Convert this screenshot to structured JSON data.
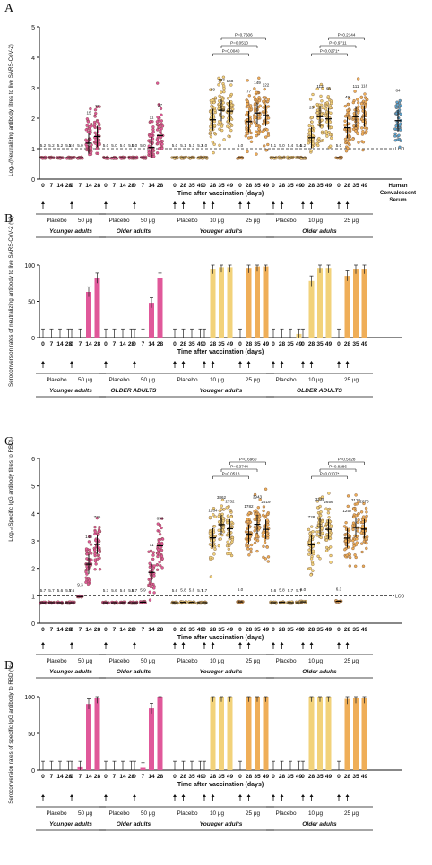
{
  "figure": {
    "panel_letters": [
      "A",
      "B",
      "C",
      "D"
    ]
  },
  "chart_data": [
    {
      "panel": "A",
      "type": "scatter",
      "ylabel": "Log₁₀(Neutralizing antibody titres to live SARS-CoV-2)",
      "xlabel": "Time after vaccination (days)",
      "ylim": [
        0,
        5
      ],
      "yticks": [
        0,
        1,
        2,
        3,
        4,
        5
      ],
      "lod_value": 1.0,
      "lod_label": "LOD",
      "groups": [
        {
          "days": [
            "0",
            "7",
            "14",
            "28"
          ],
          "gmt_labels": [
            "5.2",
            "5.2",
            "5.2",
            "5.2"
          ],
          "color": "#e0589a",
          "centers": [
            0.7,
            0.7,
            0.7,
            0.7
          ]
        },
        {
          "days": [
            "0",
            "7",
            "14",
            "28"
          ],
          "gmt_labels": [
            "5.0",
            "5.0",
            "15",
            "25"
          ],
          "color": "#e0589a",
          "centers": [
            0.7,
            0.7,
            1.18,
            1.4
          ]
        },
        {
          "days": [
            "0",
            "7",
            "14",
            "28"
          ],
          "gmt_labels": [
            "5.0",
            "5.0",
            "5.0",
            "5.0"
          ],
          "color": "#e0589a",
          "centers": [
            0.7,
            0.7,
            0.7,
            0.7
          ]
        },
        {
          "days": [
            "0",
            "7",
            "14",
            "28"
          ],
          "gmt_labels": [
            "5.0",
            "5.0",
            "11",
            "27"
          ],
          "color": "#e0589a",
          "centers": [
            0.7,
            0.7,
            1.04,
            1.43
          ]
        },
        {
          "days": [
            "0",
            "28",
            "35",
            "49"
          ],
          "gmt_labels": [
            "5.0",
            "5.1",
            "5.1",
            "5.2"
          ],
          "color": "#f2d27a",
          "centers": [
            0.7,
            0.7,
            0.7,
            0.7
          ]
        },
        {
          "days": [
            "0",
            "28",
            "35",
            "49"
          ],
          "gmt_labels": [
            "5.0",
            "89",
            "182",
            "168"
          ],
          "color": "#f2d27a",
          "centers": [
            0.7,
            1.95,
            2.26,
            2.23
          ]
        },
        {
          "days": [
            "0",
            "28",
            "35",
            "49"
          ],
          "gmt_labels": [
            "5.0",
            "77",
            "149",
            "122"
          ],
          "color": "#efae58",
          "centers": [
            0.7,
            1.89,
            2.17,
            2.09
          ]
        },
        {
          "days": [
            "0",
            "28",
            "35",
            "49"
          ],
          "gmt_labels": [
            "5.1",
            "5.0",
            "5.4",
            "5.4"
          ],
          "color": "#f2d27a",
          "centers": [
            0.7,
            0.7,
            0.7,
            0.7
          ]
        },
        {
          "days": [
            "0",
            "28",
            "35",
            "49"
          ],
          "gmt_labels": [
            "5.2",
            "23",
            "112",
            "96"
          ],
          "color": "#f2d27a",
          "centers": [
            0.7,
            1.36,
            2.05,
            1.98
          ]
        },
        {
          "days": [
            "0",
            "28",
            "35",
            "49"
          ],
          "gmt_labels": [
            "5.0",
            "49",
            "111",
            "118"
          ],
          "color": "#efae58",
          "centers": [
            0.7,
            1.69,
            2.05,
            2.07
          ]
        },
        {
          "days": [
            ""
          ],
          "gmt_labels": [
            "84"
          ],
          "color": "#5ba3cf",
          "centers": [
            1.92
          ]
        }
      ],
      "p_values": [
        {
          "text": "P=0.7606"
        },
        {
          "text": "P=0.0510"
        },
        {
          "text": "P=0.0040"
        },
        {
          "text": "P=0.2144"
        },
        {
          "text": "P=0.9711"
        },
        {
          "text": "P=0.0271*"
        }
      ],
      "extra_label": "Human Convalescent Serum"
    },
    {
      "panel": "B",
      "type": "bar",
      "ylabel": "Seroconversion rates of neutralizing antibody to live SARS-CoV-2 (%)",
      "xlabel": "Time after vaccination (days)",
      "ylim": [
        0,
        100
      ],
      "yticks": [
        0,
        50,
        100
      ],
      "groups": [
        {
          "days": [
            "0",
            "7",
            "14",
            "28"
          ],
          "values": [
            0,
            0,
            0,
            0
          ],
          "color": "#e0589a"
        },
        {
          "days": [
            "0",
            "7",
            "14",
            "28"
          ],
          "values": [
            0,
            0,
            63,
            82
          ],
          "color": "#e0589a"
        },
        {
          "days": [
            "0",
            "7",
            "14",
            "28"
          ],
          "values": [
            0,
            0,
            0,
            0
          ],
          "color": "#e0589a"
        },
        {
          "days": [
            "0",
            "7",
            "14",
            "28"
          ],
          "values": [
            0,
            0,
            48,
            82
          ],
          "color": "#e0589a"
        },
        {
          "days": [
            "0",
            "28",
            "35",
            "49"
          ],
          "values": [
            0,
            0,
            0,
            0
          ],
          "color": "#f2d27a"
        },
        {
          "days": [
            "0",
            "28",
            "35",
            "49"
          ],
          "values": [
            0,
            95,
            97,
            97
          ],
          "color": "#f2d27a"
        },
        {
          "days": [
            "0",
            "28",
            "35",
            "49"
          ],
          "values": [
            0,
            96,
            98,
            98
          ],
          "color": "#efae58"
        },
        {
          "days": [
            "0",
            "28",
            "35",
            "49"
          ],
          "values": [
            0,
            0,
            0,
            5
          ],
          "color": "#f2d27a"
        },
        {
          "days": [
            "0",
            "28",
            "35",
            "49"
          ],
          "values": [
            0,
            78,
            96,
            96
          ],
          "color": "#f2d27a"
        },
        {
          "days": [
            "0",
            "28",
            "35",
            "49"
          ],
          "values": [
            0,
            85,
            95,
            95
          ],
          "color": "#efae58"
        }
      ]
    },
    {
      "panel": "C",
      "type": "scatter",
      "ylabel": "Log₁₀(Specific IgG antibody titres to RBD)",
      "xlabel": "Time after vaccination (days)",
      "ylim": [
        0,
        6
      ],
      "yticks": [
        0,
        1,
        2,
        3,
        4,
        5,
        6
      ],
      "lod_value": 1.0,
      "lod_label": "LOD",
      "groups": [
        {
          "days": [
            "0",
            "7",
            "14",
            "28"
          ],
          "gmt_labels": [
            "5.7",
            "5.7",
            "5.6",
            "5.7"
          ],
          "color": "#e0589a",
          "centers": [
            0.75,
            0.75,
            0.75,
            0.75
          ]
        },
        {
          "days": [
            "0",
            "7",
            "14",
            "28"
          ],
          "gmt_labels": [
            "5.6",
            "9.3",
            "140",
            "735"
          ],
          "color": "#e0589a",
          "centers": [
            0.75,
            0.97,
            2.15,
            2.87
          ]
        },
        {
          "days": [
            "0",
            "7",
            "14",
            "28"
          ],
          "gmt_labels": [
            "5.7",
            "5.6",
            "5.6",
            "5.6"
          ],
          "color": "#e0589a",
          "centers": [
            0.75,
            0.75,
            0.75,
            0.75
          ]
        },
        {
          "days": [
            "0",
            "7",
            "14",
            "28"
          ],
          "gmt_labels": [
            "5.7",
            "5.9",
            "71",
            "654"
          ],
          "color": "#e0589a",
          "centers": [
            0.75,
            0.77,
            1.85,
            2.82
          ]
        },
        {
          "days": [
            "0",
            "28",
            "35",
            "49"
          ],
          "gmt_labels": [
            "5.6",
            "5.8",
            "5.8",
            "5.7"
          ],
          "color": "#f2d27a",
          "centers": [
            0.75,
            0.76,
            0.76,
            0.75
          ]
        },
        {
          "days": [
            "0",
            "28",
            "35",
            "49"
          ],
          "gmt_labels": [
            "5.7",
            "1284",
            "3862",
            "2732"
          ],
          "color": "#f2d27a",
          "centers": [
            0.75,
            3.11,
            3.59,
            3.44
          ]
        },
        {
          "days": [
            "0",
            "28",
            "35",
            "49"
          ],
          "gmt_labels": [
            "6.0",
            "1782",
            "3943",
            "2619"
          ],
          "color": "#efae58",
          "centers": [
            0.78,
            3.25,
            3.6,
            3.42
          ]
        },
        {
          "days": [
            "0",
            "28",
            "35",
            "49"
          ],
          "gmt_labels": [
            "5.6",
            "5.8",
            "5.7",
            "5.7"
          ],
          "color": "#f2d27a",
          "centers": [
            0.75,
            0.76,
            0.75,
            0.75
          ]
        },
        {
          "days": [
            "0",
            "28",
            "35",
            "49"
          ],
          "gmt_labels": [
            "6.0",
            "728",
            "3239",
            "2656"
          ],
          "color": "#f2d27a",
          "centers": [
            0.78,
            2.86,
            3.51,
            3.42
          ]
        },
        {
          "days": [
            "0",
            "28",
            "35",
            "49"
          ],
          "gmt_labels": [
            "6.3",
            "1257",
            "3120",
            "2675"
          ],
          "color": "#efae58",
          "centers": [
            0.8,
            3.1,
            3.49,
            3.43
          ]
        }
      ],
      "p_values": [
        {
          "text": "P=0.6960"
        },
        {
          "text": "P=0.3744"
        },
        {
          "text": "P=0.0518"
        },
        {
          "text": "P=0.5028"
        },
        {
          "text": "P=0.8286"
        },
        {
          "text": "P=0.0107*"
        }
      ]
    },
    {
      "panel": "D",
      "type": "bar",
      "ylabel": "Seroconversion rates of specific IgG antibody to RBD (%)",
      "xlabel": "Time after vaccination (days)",
      "ylim": [
        0,
        100
      ],
      "yticks": [
        0,
        50,
        100
      ],
      "groups": [
        {
          "days": [
            "0",
            "7",
            "14",
            "28"
          ],
          "values": [
            0,
            0,
            0,
            0
          ],
          "color": "#e0589a"
        },
        {
          "days": [
            "0",
            "7",
            "14",
            "28"
          ],
          "values": [
            0,
            5,
            90,
            98
          ],
          "color": "#e0589a"
        },
        {
          "days": [
            "0",
            "7",
            "14",
            "28"
          ],
          "values": [
            0,
            0,
            0,
            0
          ],
          "color": "#e0589a"
        },
        {
          "days": [
            "0",
            "7",
            "14",
            "28"
          ],
          "values": [
            0,
            3,
            84,
            100
          ],
          "color": "#e0589a"
        },
        {
          "days": [
            "0",
            "28",
            "35",
            "49"
          ],
          "values": [
            0,
            0,
            0,
            0
          ],
          "color": "#f2d27a"
        },
        {
          "days": [
            "0",
            "28",
            "35",
            "49"
          ],
          "values": [
            0,
            100,
            100,
            100
          ],
          "color": "#f2d27a"
        },
        {
          "days": [
            "0",
            "28",
            "35",
            "49"
          ],
          "values": [
            0,
            100,
            100,
            100
          ],
          "color": "#efae58"
        },
        {
          "days": [
            "0",
            "28",
            "35",
            "49"
          ],
          "values": [
            0,
            0,
            0,
            0
          ],
          "color": "#f2d27a"
        },
        {
          "days": [
            "0",
            "28",
            "35",
            "49"
          ],
          "values": [
            0,
            100,
            100,
            100
          ],
          "color": "#f2d27a"
        },
        {
          "days": [
            "0",
            "28",
            "35",
            "49"
          ],
          "values": [
            0,
            97,
            98,
            98
          ],
          "color": "#efae58"
        }
      ]
    }
  ],
  "schedules": [
    {
      "panel": "A",
      "dose_labels": [
        "Placebo",
        "50 μg",
        "Placebo",
        "50 μg",
        "Placebo",
        "10 μg",
        "25 μg",
        "Placebo",
        "10 μg",
        "25 μg"
      ],
      "population_labels": [
        "Younger adults",
        "Older adults",
        "Younger adults",
        "Older adults"
      ]
    },
    {
      "panel": "B",
      "dose_labels": [
        "Placebo",
        "50 μg",
        "Placebo",
        "50 μg",
        "Placebo",
        "10 μg",
        "25 μg",
        "Placebo",
        "10 μg",
        "25 μg"
      ],
      "population_labels": [
        "Younger adults",
        "OLDER ADULTS",
        "Younger adults",
        "OLDER ADULTS"
      ]
    },
    {
      "panel": "C",
      "dose_labels": [
        "Placebo",
        "50 μg",
        "Placebo",
        "50 μg",
        "Placebo",
        "10 μg",
        "25 μg",
        "Placebo",
        "10 μg",
        "25 μg"
      ],
      "population_labels": [
        "Younger adults",
        "Older adults",
        "Younger adults",
        "Older adults"
      ]
    },
    {
      "panel": "D",
      "dose_labels": [
        "Placebo",
        "50 μg",
        "Placebo",
        "50 μg",
        "Placebo",
        "10 μg",
        "25 μg",
        "Placebo",
        "10 μg",
        "25 μg"
      ],
      "population_labels": [
        "Younger adults",
        "Older adults",
        "Younger adults",
        "Older adults"
      ]
    }
  ]
}
